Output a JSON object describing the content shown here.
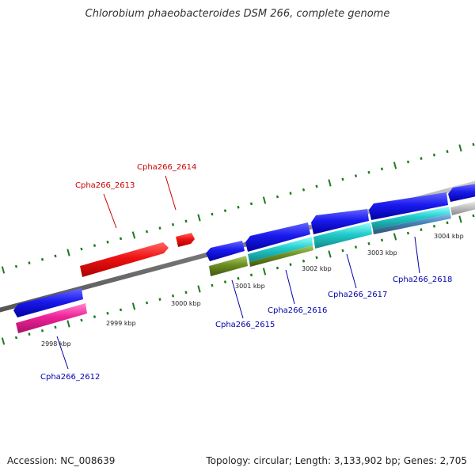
{
  "title": "Chlorobium phaeobacteroides DSM 266, complete genome",
  "footer": {
    "accession": "Accession: NC_008639",
    "stats": "Topology: circular; Length: 3,133,902 bp; Genes: 2,705"
  },
  "colors": {
    "backbone": "#8a8a8a",
    "tick": "#1e7a1e",
    "reverse_label": "#cc0000",
    "forward_label": "#0000aa"
  },
  "kbp_labels": [
    "2998 kbp",
    "2999 kbp",
    "3000 kbp",
    "3001 kbp",
    "3002 kbp",
    "3003 kbp",
    "3004 kbp"
  ],
  "gene_labels": [
    {
      "text": "Cpha266_2613",
      "color": "#cc0000"
    },
    {
      "text": "Cpha266_2614",
      "color": "#cc0000"
    },
    {
      "text": "Cpha266_2612",
      "color": "#0000aa"
    },
    {
      "text": "Cpha266_2615",
      "color": "#0000aa"
    },
    {
      "text": "Cpha266_2616",
      "color": "#0000aa"
    },
    {
      "text": "Cpha266_2617",
      "color": "#0000aa"
    },
    {
      "text": "Cpha266_2618",
      "color": "#0000aa"
    }
  ],
  "features": [
    {
      "name": "red-gene-2613",
      "color": "#ee1111"
    },
    {
      "name": "red-gene-2614",
      "color": "#ee1111"
    },
    {
      "name": "blue-gene-1",
      "color": "#1a1aee"
    },
    {
      "name": "magenta-gene-2612",
      "color": "#ee2299"
    },
    {
      "name": "blue-gene-2",
      "color": "#1a1aee"
    },
    {
      "name": "olive-gene-2615",
      "color": "#6b8e23"
    },
    {
      "name": "blue-gene-3",
      "color": "#1a1aee"
    },
    {
      "name": "cyan-olive-gene-2616",
      "color": "#22cccc"
    },
    {
      "name": "blue-gene-4",
      "color": "#1a1aee"
    },
    {
      "name": "cyan-gene-2617",
      "color": "#22cccc"
    },
    {
      "name": "blue-gene-5",
      "color": "#1a1aee"
    },
    {
      "name": "cyan-gene-2618",
      "color": "#22cccc"
    },
    {
      "name": "blue-gene-6",
      "color": "#1a1aee"
    },
    {
      "name": "gray-gene",
      "color": "#bbbbbb"
    }
  ]
}
